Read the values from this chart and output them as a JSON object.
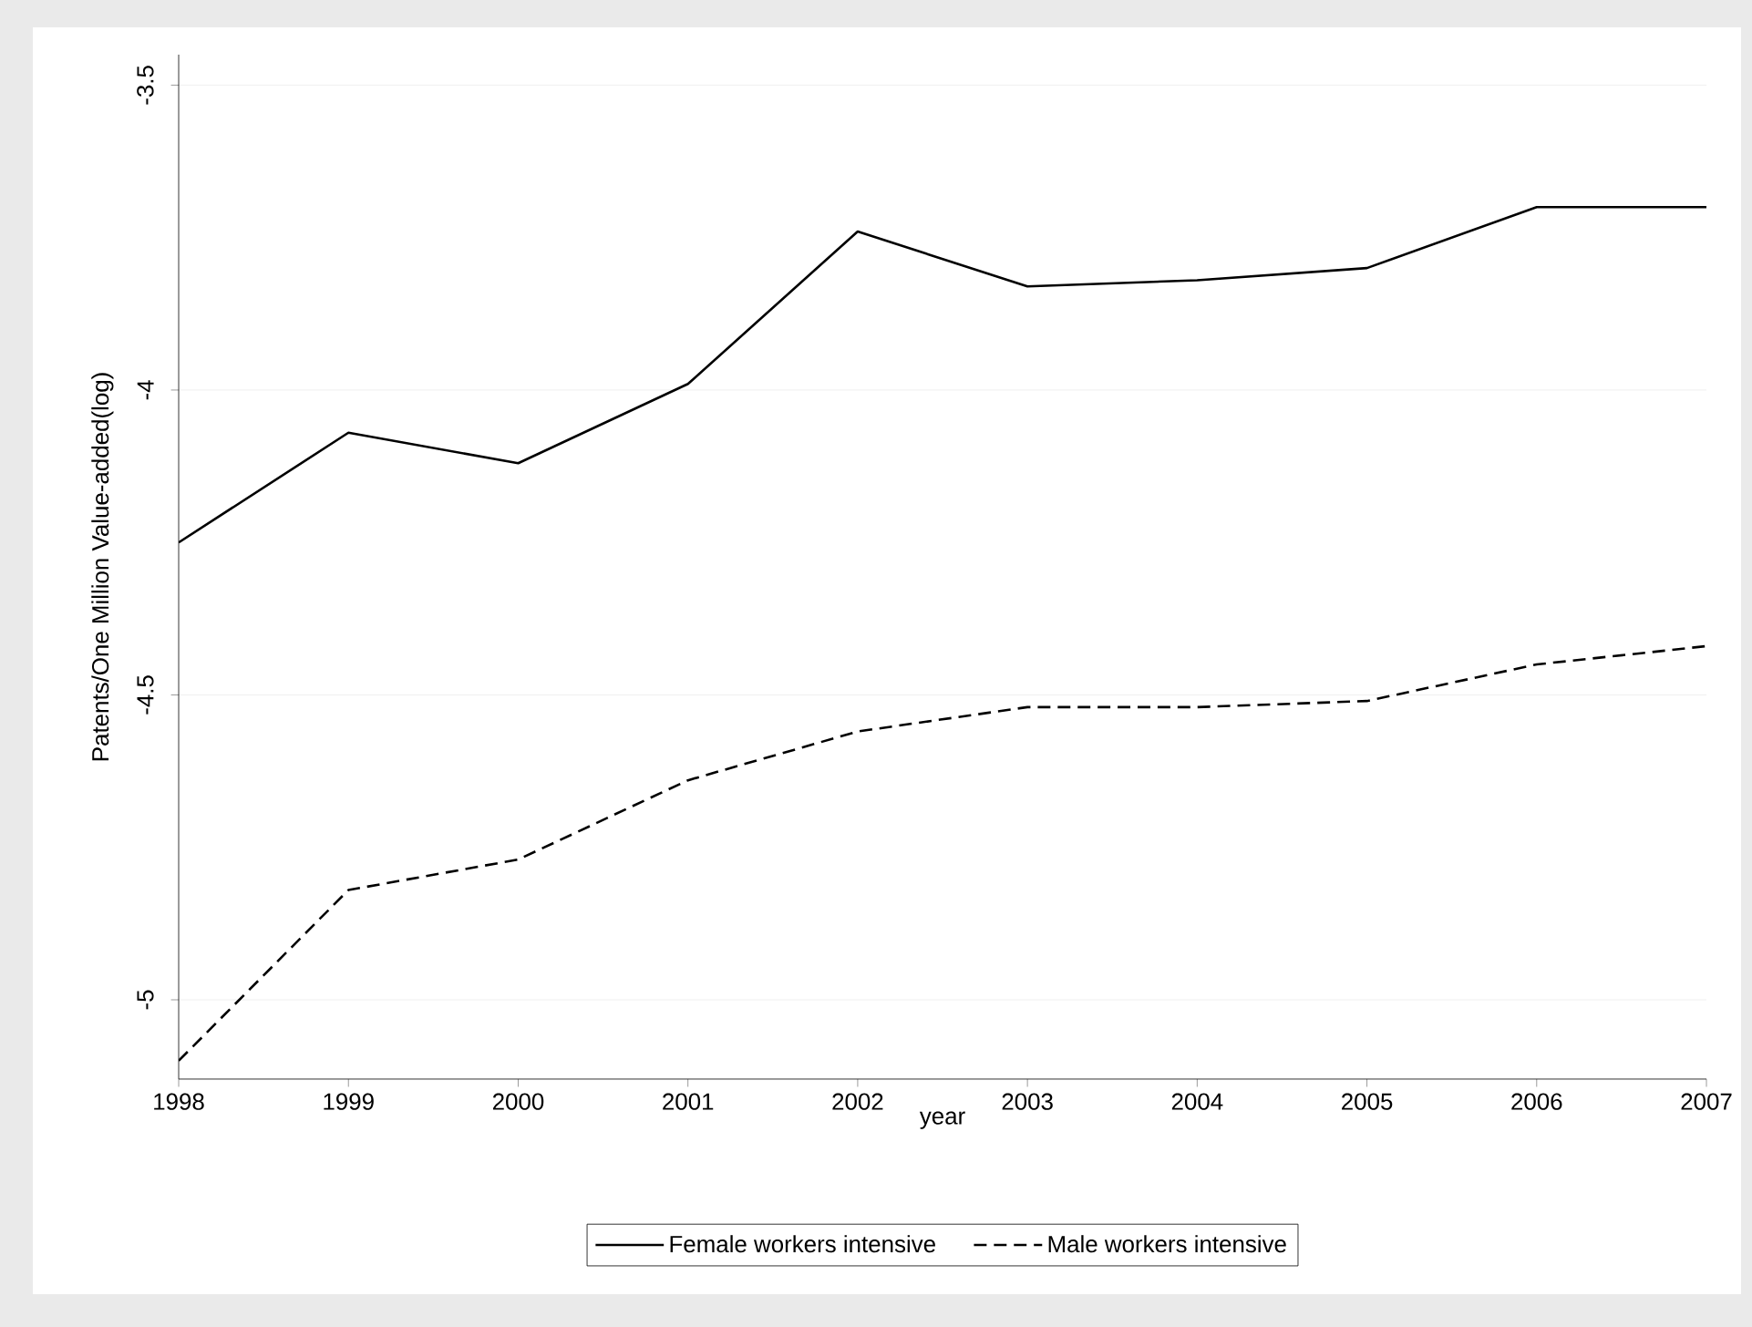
{
  "chart_data": {
    "type": "line",
    "xlabel": "year",
    "ylabel": "Patents/One Million Value-added(log)",
    "x": [
      1998,
      1999,
      2000,
      2001,
      2002,
      2003,
      2004,
      2005,
      2006,
      2007
    ],
    "series": [
      {
        "name": "Female workers intensive",
        "color": "#000000",
        "line_style": "solid",
        "values": [
          -4.25,
          -4.07,
          -4.12,
          -3.99,
          -3.74,
          -3.83,
          -3.82,
          -3.8,
          -3.7,
          -3.7
        ]
      },
      {
        "name": "Male workers intensive",
        "color": "#000000",
        "line_style": "dashed",
        "values": [
          -5.1,
          -4.82,
          -4.77,
          -4.64,
          -4.56,
          -4.52,
          -4.52,
          -4.51,
          -4.45,
          -4.42
        ]
      }
    ],
    "xlim": [
      1998,
      2007
    ],
    "ylim": [
      -5.13,
      -3.45
    ],
    "xticks": [
      1998,
      1999,
      2000,
      2001,
      2002,
      2003,
      2004,
      2005,
      2006,
      2007
    ],
    "yticks": [
      -5,
      -4.5,
      -4,
      -3.5
    ],
    "grid": "y",
    "legend": "bottom"
  }
}
